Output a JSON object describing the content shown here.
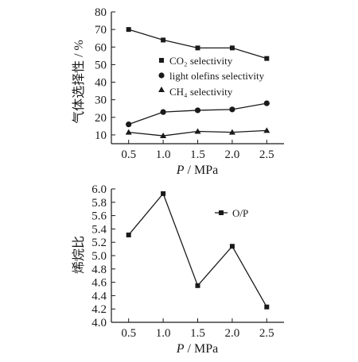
{
  "chart_data": [
    {
      "type": "line",
      "xlabel": {
        "var": "P",
        "unit": " / MPa"
      },
      "ylabel": "气体选择性 / %",
      "x": [
        0.5,
        1.0,
        1.5,
        2.0,
        2.5
      ],
      "x_ticks": [
        "0.5",
        "1.0",
        "1.5",
        "2.0",
        "2.5"
      ],
      "xlim": [
        0.25,
        2.75
      ],
      "ylim": [
        5,
        80
      ],
      "y_ticks": [
        "10",
        "20",
        "30",
        "40",
        "50",
        "60",
        "70",
        "80"
      ],
      "legend_position": "center-right",
      "series": [
        {
          "name": "CO₂ selectivity",
          "marker": "square",
          "values": [
            70,
            64,
            59.5,
            59.5,
            53.5
          ]
        },
        {
          "name": "light olefins selectivity",
          "marker": "circle",
          "values": [
            16,
            23,
            24,
            24.5,
            28
          ]
        },
        {
          "name": "CH₄ selectivity",
          "marker": "triangle",
          "values": [
            11.5,
            9.5,
            12,
            11.5,
            12.5
          ]
        }
      ]
    },
    {
      "type": "line",
      "xlabel": {
        "var": "P",
        "unit": " / MPa"
      },
      "ylabel": "烯烷比",
      "x": [
        0.5,
        1.0,
        1.5,
        2.0,
        2.5
      ],
      "x_ticks": [
        "0.5",
        "1.0",
        "1.5",
        "2.0",
        "2.5"
      ],
      "xlim": [
        0.25,
        2.75
      ],
      "ylim": [
        4.0,
        6.0
      ],
      "y_ticks": [
        "4.0",
        "4.2",
        "4.4",
        "4.6",
        "4.8",
        "5.0",
        "5.2",
        "5.4",
        "5.6",
        "5.8",
        "6.0"
      ],
      "legend_position": "top-right",
      "series": [
        {
          "name": "O/P",
          "marker": "square",
          "values": [
            5.31,
            5.93,
            4.55,
            5.14,
            4.23
          ]
        }
      ]
    }
  ]
}
